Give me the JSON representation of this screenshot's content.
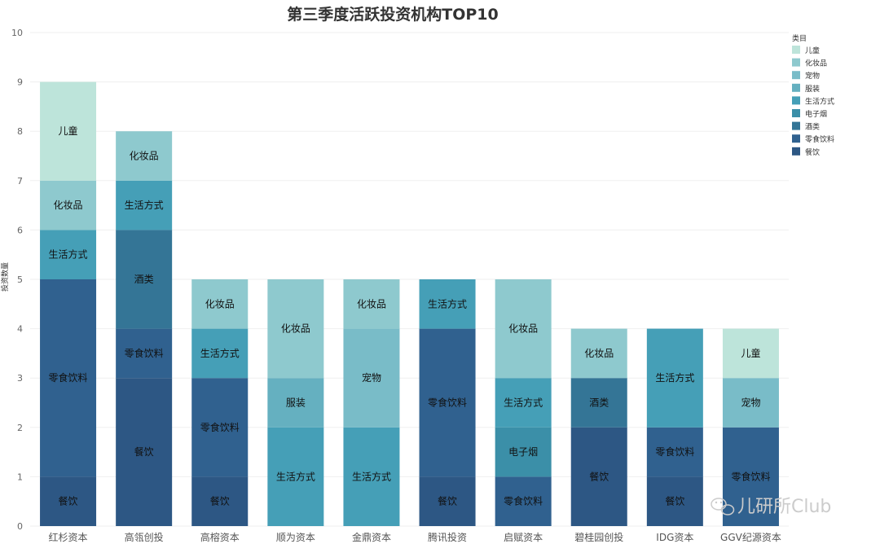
{
  "chart_data": {
    "type": "bar",
    "stacked": true,
    "title": "第三季度活跃投资机构TOP10",
    "ylabel": "投资数量",
    "xlabel": "",
    "ylim": [
      0,
      10
    ],
    "yticks": [
      0,
      1,
      2,
      3,
      4,
      5,
      6,
      7,
      8,
      9,
      10
    ],
    "grid": true,
    "categories": [
      "红杉资本",
      "高瓴创投",
      "高榕资本",
      "顺为资本",
      "金鼎资本",
      "腾讯投资",
      "启赋资本",
      "碧桂园创投",
      "IDG资本",
      "GGV纪源资本"
    ],
    "legend": {
      "title": "类目",
      "position": "top-right",
      "items": [
        "儿童",
        "化妆品",
        "宠物",
        "服装",
        "生活方式",
        "电子烟",
        "酒类",
        "零食饮料",
        "餐饮"
      ]
    },
    "series": [
      {
        "name": "餐饮",
        "color": "#2d5784",
        "values": [
          1,
          3,
          1,
          0,
          0,
          1,
          0,
          2,
          1,
          0
        ]
      },
      {
        "name": "零食饮料",
        "color": "#30618f",
        "values": [
          4,
          1,
          2,
          0,
          0,
          3,
          1,
          0,
          1,
          2
        ]
      },
      {
        "name": "酒类",
        "color": "#347596",
        "values": [
          0,
          2,
          0,
          0,
          0,
          0,
          0,
          1,
          0,
          0
        ]
      },
      {
        "name": "电子烟",
        "color": "#3b8fa8",
        "values": [
          0,
          0,
          0,
          0,
          0,
          0,
          1,
          0,
          0,
          0
        ]
      },
      {
        "name": "生活方式",
        "color": "#459fb7",
        "values": [
          1,
          1,
          1,
          2,
          2,
          1,
          1,
          0,
          2,
          0
        ]
      },
      {
        "name": "服装",
        "color": "#65b0c0",
        "values": [
          0,
          0,
          0,
          1,
          0,
          0,
          0,
          0,
          0,
          0
        ]
      },
      {
        "name": "宠物",
        "color": "#79bcc8",
        "values": [
          0,
          0,
          0,
          0,
          2,
          0,
          0,
          0,
          0,
          1
        ]
      },
      {
        "name": "化妆品",
        "color": "#8ec9ce",
        "values": [
          1,
          1,
          1,
          2,
          1,
          0,
          2,
          1,
          0,
          0
        ]
      },
      {
        "name": "儿童",
        "color": "#bde4da",
        "values": [
          2,
          0,
          0,
          0,
          0,
          0,
          0,
          0,
          0,
          1
        ]
      }
    ]
  },
  "watermark": "儿研所Club"
}
